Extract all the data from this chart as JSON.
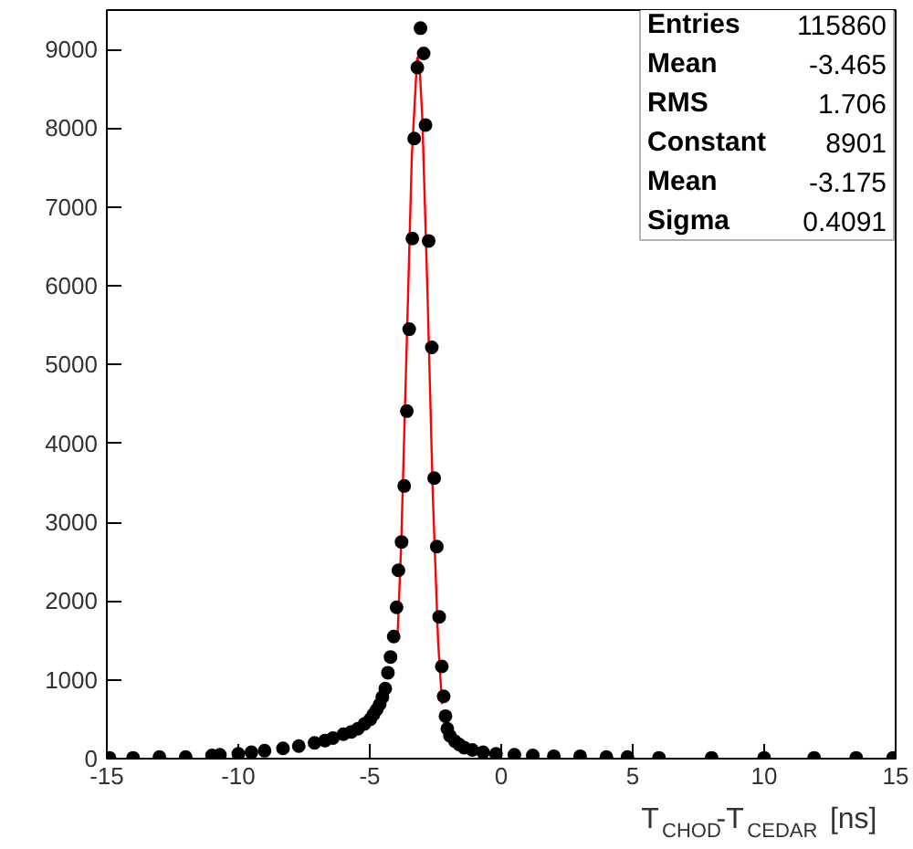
{
  "chart_data": {
    "type": "scatter",
    "xlabel": "T$_{CHOD}$-T$_{CEDAR}$ [ns]",
    "xlim": [
      -15,
      15
    ],
    "xticks": [
      -15,
      -10,
      -5,
      0,
      5,
      10,
      15
    ],
    "ylim": [
      0,
      9500
    ],
    "yticks": [
      0,
      1000,
      2000,
      3000,
      4000,
      5000,
      6000,
      7000,
      8000,
      9000
    ],
    "grid": false,
    "marker": "circle",
    "annotations": [
      "Entries",
      "115860",
      "Mean",
      "-3.465",
      "RMS",
      "1.706",
      "Constant",
      "8901",
      "Mean",
      "-3.175",
      "Sigma",
      "0.4091"
    ],
    "series": [
      {
        "color": "#000000",
        "x": [
          -14.9,
          -14,
          -13,
          -12,
          -11,
          -10.7,
          -10,
          -9.5,
          -9,
          -8.3,
          -7.7,
          -7.1,
          -6.7,
          -6.4,
          -6,
          -5.7,
          -5.45,
          -5.2,
          -4.98,
          -4.86,
          -4.74,
          -4.62,
          -4.52,
          -4.41,
          -4.31,
          -4.21,
          -4.09,
          -3.98,
          -3.91,
          -3.79,
          -3.69,
          -3.59,
          -3.5,
          -3.38,
          -3.31,
          -3.19,
          -3.07,
          -2.95,
          -2.88,
          -2.76,
          -2.64,
          -2.55,
          -2.45,
          -2.36,
          -2.26,
          -2.19,
          -2.12,
          -2.05,
          -1.95,
          -1.76,
          -1.6,
          -1.41,
          -1.1,
          -0.69,
          -0.2,
          0.5,
          1.2,
          2,
          3,
          4,
          4.8,
          6,
          8,
          10,
          11.9,
          13.5,
          14.9
        ],
        "values": [
          10,
          10,
          20,
          20,
          40,
          50,
          60,
          80,
          100,
          130,
          160,
          200,
          230,
          260,
          310,
          340,
          380,
          440,
          500,
          560,
          620,
          690,
          780,
          890,
          1090,
          1290,
          1550,
          1920,
          2390,
          2750,
          3460,
          4410,
          5450,
          6600,
          7870,
          8770,
          9270,
          8950,
          8040,
          6570,
          5220,
          3560,
          2690,
          1800,
          1170,
          790,
          540,
          380,
          290,
          220,
          180,
          140,
          110,
          80,
          60,
          50,
          40,
          30,
          30,
          20,
          20,
          10,
          10,
          10,
          10,
          10,
          10
        ]
      },
      {
        "type": "line",
        "color": "#ff0000",
        "marker": "none",
        "x": [
          -3.95,
          -3.8,
          -3.6,
          -3.4,
          -3.2,
          -3.175,
          -3.1,
          -3.0,
          -2.8,
          -2.6,
          -2.4,
          -2.25
        ],
        "values": [
          1480,
          2770,
          5190,
          7650,
          8880,
          8900,
          8750,
          8120,
          5850,
          3320,
          1480,
          690
        ]
      }
    ]
  }
}
